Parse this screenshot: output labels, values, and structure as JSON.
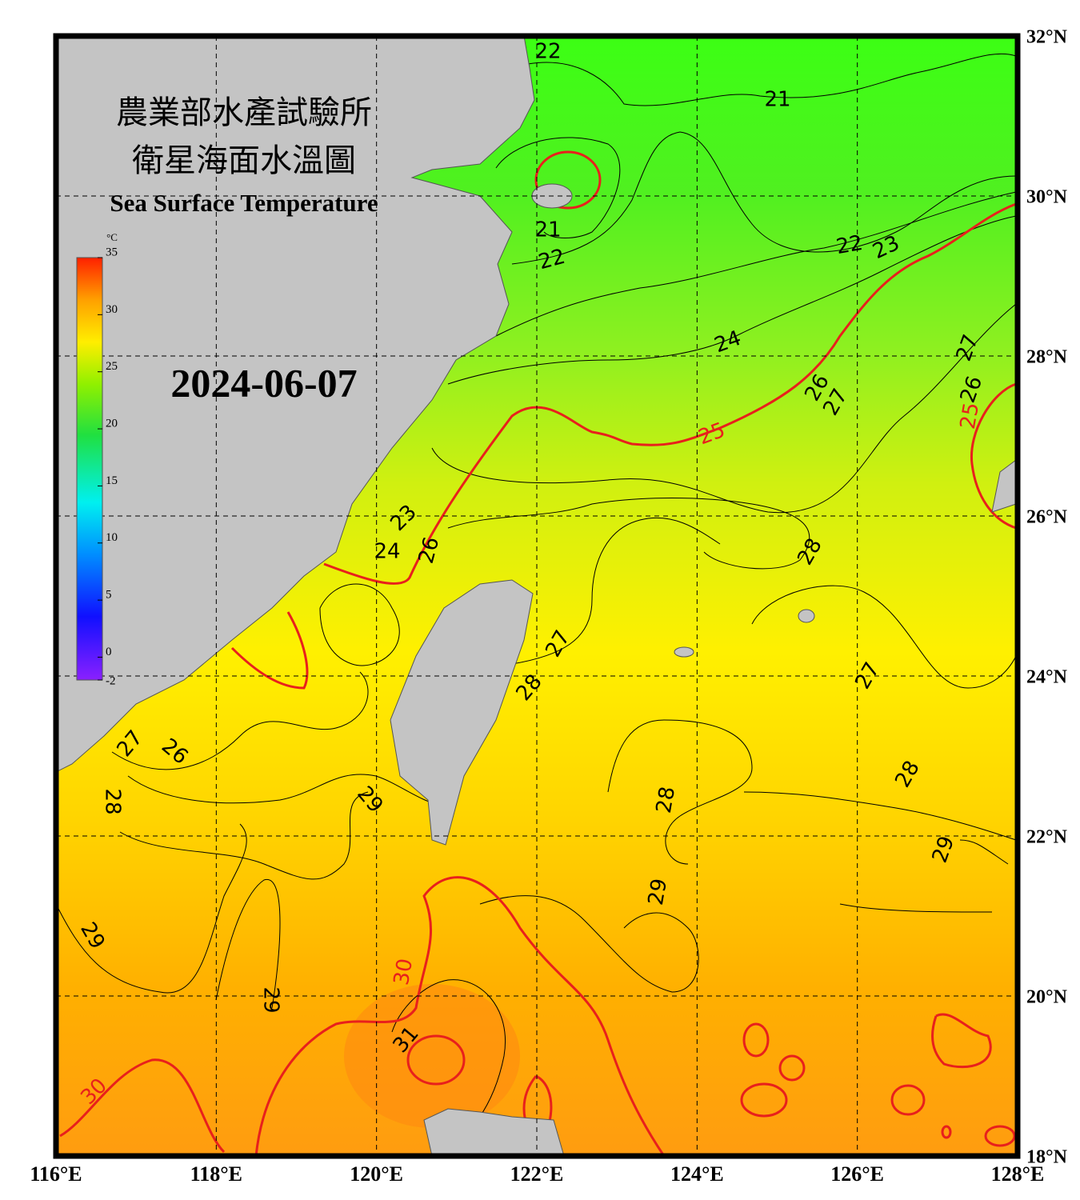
{
  "header": {
    "title_zh_1": "農業部水產試驗所",
    "title_zh_2": "衛星海面水溫圖",
    "title_en": "Sea Surface Temperature"
  },
  "date": "2024-06-07",
  "map": {
    "lon_range": [
      116,
      128
    ],
    "lat_range": [
      18,
      32
    ],
    "lon_ticks": [
      {
        "value": 116,
        "label": "116°E"
      },
      {
        "value": 118,
        "label": "118°E"
      },
      {
        "value": 120,
        "label": "120°E"
      },
      {
        "value": 122,
        "label": "122°E"
      },
      {
        "value": 124,
        "label": "124°E"
      },
      {
        "value": 126,
        "label": "126°E"
      },
      {
        "value": 128,
        "label": "128°E"
      }
    ],
    "lat_ticks": [
      {
        "value": 32,
        "label": "32°N"
      },
      {
        "value": 30,
        "label": "30°N"
      },
      {
        "value": 28,
        "label": "28°N"
      },
      {
        "value": 26,
        "label": "26°N"
      },
      {
        "value": 24,
        "label": "24°N"
      },
      {
        "value": 22,
        "label": "22°N"
      },
      {
        "value": 20,
        "label": "20°N"
      },
      {
        "value": 18,
        "label": "18°N"
      }
    ]
  },
  "colorbar": {
    "unit": "°C",
    "range": [
      -2,
      35
    ],
    "ticks": [
      35,
      30,
      25,
      20,
      15,
      10,
      5,
      0,
      -2
    ]
  },
  "contour_labels": [
    22,
    21,
    21,
    22,
    22,
    23,
    24,
    25,
    26,
    27,
    27,
    26,
    25,
    23,
    24,
    26,
    28,
    27,
    27,
    28,
    27,
    26,
    28,
    29,
    28,
    28,
    29,
    29,
    29,
    29,
    30,
    31,
    30
  ]
}
